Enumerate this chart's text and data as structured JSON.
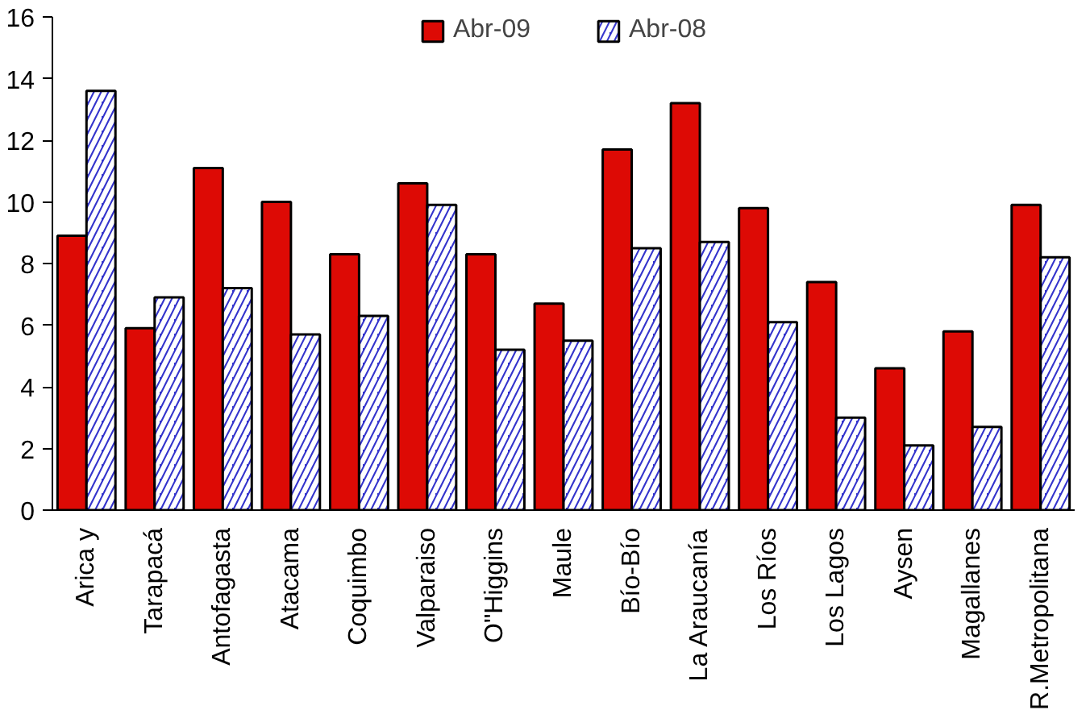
{
  "chart_data": {
    "type": "bar",
    "categories": [
      "Arica y",
      "Tarapacá",
      "Antofagasta",
      "Atacama",
      "Coquimbo",
      "Valparaiso",
      "O\"Higgins",
      "Maule",
      "Bío-Bío",
      "La Araucanía",
      "Los Ríos",
      "Los Lagos",
      "Aysen",
      "Magallanes",
      "R.Metropolitana"
    ],
    "series": [
      {
        "name": "Abr-09",
        "color": "#dd0a05",
        "values": [
          8.9,
          5.9,
          11.1,
          10.0,
          8.3,
          10.6,
          8.3,
          6.7,
          11.7,
          13.2,
          9.8,
          7.4,
          4.6,
          5.8,
          9.9
        ]
      },
      {
        "name": "Abr-08",
        "color": "#3333cc",
        "values": [
          13.6,
          6.9,
          7.2,
          5.7,
          6.3,
          9.9,
          5.2,
          5.5,
          8.5,
          8.7,
          6.1,
          3.0,
          2.1,
          2.7,
          8.2
        ]
      }
    ],
    "ylim": [
      0,
      16
    ],
    "yticks": [
      0,
      2,
      4,
      6,
      8,
      10,
      12,
      14,
      16
    ],
    "grid": false,
    "legend": "top"
  }
}
